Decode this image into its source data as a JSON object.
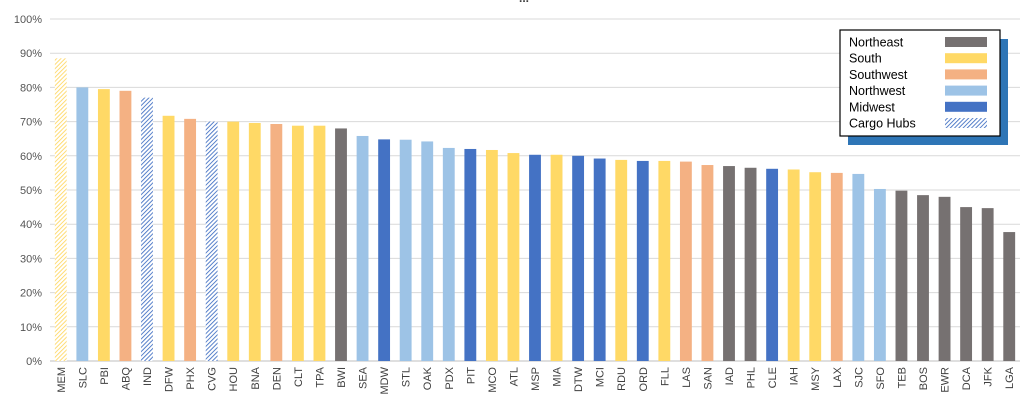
{
  "chart_data": {
    "type": "bar",
    "title": "...",
    "ylim": [
      0,
      1
    ],
    "yticks": [
      "0%",
      "10%",
      "20%",
      "30%",
      "40%",
      "50%",
      "60%",
      "70%",
      "80%",
      "90%",
      "100%"
    ],
    "grid": true,
    "legend_position": "top-right",
    "categories": [
      "MEM",
      "SLC",
      "PBI",
      "ABQ",
      "IND",
      "DFW",
      "PHX",
      "CVG",
      "HOU",
      "BNA",
      "DEN",
      "CLT",
      "TPA",
      "BWI",
      "SEA",
      "MDW",
      "STL",
      "OAK",
      "PDX",
      "PIT",
      "MCO",
      "ATL",
      "MSP",
      "MIA",
      "DTW",
      "MCI",
      "RDU",
      "ORD",
      "FLL",
      "LAS",
      "SAN",
      "IAD",
      "PHL",
      "CLE",
      "IAH",
      "MSY",
      "LAX",
      "SJC",
      "SFO",
      "TEB",
      "BOS",
      "EWR",
      "DCA",
      "JFK",
      "LGA"
    ],
    "values": [
      0.885,
      0.8,
      0.795,
      0.79,
      0.77,
      0.717,
      0.708,
      0.7,
      0.7,
      0.696,
      0.693,
      0.688,
      0.688,
      0.68,
      0.658,
      0.648,
      0.647,
      0.642,
      0.623,
      0.62,
      0.617,
      0.608,
      0.603,
      0.603,
      0.6,
      0.592,
      0.588,
      0.585,
      0.585,
      0.583,
      0.573,
      0.57,
      0.565,
      0.562,
      0.56,
      0.552,
      0.55,
      0.547,
      0.503,
      0.498,
      0.485,
      0.48,
      0.45,
      0.447,
      0.377
    ],
    "regions": [
      "Cargo Hubs",
      "Northwest",
      "South",
      "Southwest",
      "Cargo Hubs",
      "South",
      "Southwest",
      "Cargo Hubs",
      "South",
      "South",
      "Southwest",
      "South",
      "South",
      "Northeast",
      "Northwest",
      "Midwest",
      "Northwest",
      "Northwest",
      "Northwest",
      "Midwest",
      "South",
      "South",
      "Midwest",
      "South",
      "Midwest",
      "Midwest",
      "South",
      "Midwest",
      "South",
      "Southwest",
      "Southwest",
      "Northeast",
      "Northeast",
      "Midwest",
      "South",
      "South",
      "Southwest",
      "Northwest",
      "Northwest",
      "Northeast",
      "Northeast",
      "Northeast",
      "Northeast",
      "Northeast",
      "Northeast"
    ],
    "cargo_colors": {
      "MEM": "#FFD966",
      "IND": "#4472C4",
      "CVG": "#4472C4"
    },
    "legend": [
      {
        "name": "Northeast",
        "color": "#767171",
        "hatched": false
      },
      {
        "name": "South",
        "color": "#FFD966",
        "hatched": false
      },
      {
        "name": "Southwest",
        "color": "#F4B183",
        "hatched": false
      },
      {
        "name": "Northwest",
        "color": "#9DC3E6",
        "hatched": false
      },
      {
        "name": "Midwest",
        "color": "#4472C4",
        "hatched": false
      },
      {
        "name": "Cargo Hubs",
        "color": "#4472C4",
        "hatched": true
      }
    ],
    "colors": {
      "Northeast": "#767171",
      "South": "#FFD966",
      "Southwest": "#F4B183",
      "Northwest": "#9DC3E6",
      "Midwest": "#4472C4",
      "legend_shadow": "#2E75B6",
      "grid": "#D9D9D9"
    }
  }
}
